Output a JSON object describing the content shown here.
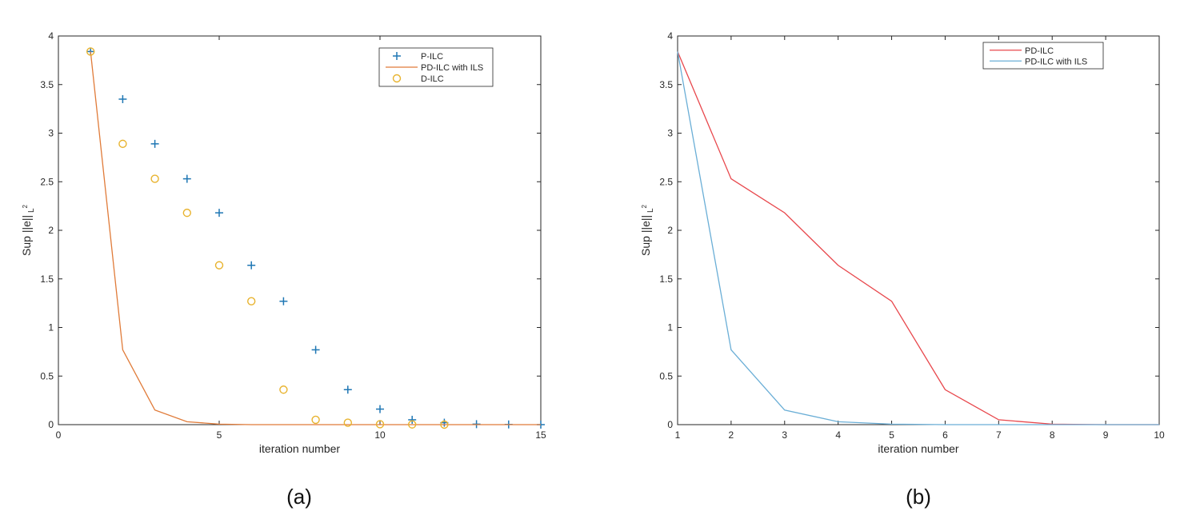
{
  "chart_data": [
    {
      "type": "line",
      "caption": "(a)",
      "xlabel": "iteration number",
      "ylabel": "Sup ||e||",
      "ylabel_sub": "L",
      "ylabel_sup": "2",
      "xlim": [
        0,
        15
      ],
      "ylim": [
        0,
        4
      ],
      "xticks": [
        0,
        5,
        10,
        15
      ],
      "yticks": [
        0,
        0.5,
        1,
        1.5,
        2,
        2.5,
        3,
        3.5,
        4
      ],
      "grid": false,
      "legend_position": "top-right",
      "series": [
        {
          "name": "P-ILC",
          "style": "plus-markers",
          "color": "#1f77b4",
          "x": [
            1,
            2,
            3,
            4,
            5,
            6,
            7,
            8,
            9,
            10,
            11,
            12,
            13,
            14,
            15
          ],
          "y": [
            3.84,
            3.35,
            2.89,
            2.53,
            2.18,
            1.64,
            1.27,
            0.77,
            0.36,
            0.16,
            0.05,
            0.02,
            0.005,
            0.002,
            0.0
          ]
        },
        {
          "name": "PD-ILC with ILS",
          "style": "line",
          "color": "#e07b39",
          "x": [
            1,
            2,
            3,
            4,
            5,
            6,
            7,
            8,
            9,
            10,
            11,
            12,
            13,
            14,
            15
          ],
          "y": [
            3.84,
            0.77,
            0.15,
            0.03,
            0.005,
            0.0,
            0.0,
            0.0,
            0.0,
            0.0,
            0.0,
            0.0,
            0.0,
            0.0,
            0.0
          ]
        },
        {
          "name": "D-ILC",
          "style": "circle-markers",
          "color": "#e8b32e",
          "x": [
            1,
            2,
            3,
            4,
            5,
            6,
            7,
            8,
            9,
            10,
            11,
            12
          ],
          "y": [
            3.84,
            2.89,
            2.53,
            2.18,
            1.64,
            1.27,
            0.36,
            0.05,
            0.02,
            0.005,
            0.002,
            0.0
          ]
        }
      ]
    },
    {
      "type": "line",
      "caption": "(b)",
      "xlabel": "iteration number",
      "ylabel": "Sup ||e||",
      "ylabel_sub": "L",
      "ylabel_sup": "2",
      "xlim": [
        1,
        10
      ],
      "ylim": [
        0,
        4
      ],
      "xticks": [
        1,
        2,
        3,
        4,
        5,
        6,
        7,
        8,
        9,
        10
      ],
      "yticks": [
        0,
        0.5,
        1,
        1.5,
        2,
        2.5,
        3,
        3.5,
        4
      ],
      "grid": false,
      "legend_position": "top-right",
      "series": [
        {
          "name": "PD-ILC",
          "style": "line",
          "color": "#e8474c",
          "x": [
            1,
            2,
            3,
            4,
            5,
            6,
            7,
            8,
            9,
            10
          ],
          "y": [
            3.84,
            2.53,
            2.18,
            1.64,
            1.27,
            0.36,
            0.05,
            0.005,
            0.0,
            0.0
          ]
        },
        {
          "name": "PD-ILC with ILS",
          "style": "line",
          "color": "#6aaed6",
          "x": [
            1,
            2,
            3,
            4,
            5,
            6,
            7,
            8,
            9,
            10
          ],
          "y": [
            3.84,
            0.77,
            0.15,
            0.03,
            0.005,
            0.0,
            0.0,
            0.0,
            0.0,
            0.0
          ]
        }
      ]
    }
  ]
}
